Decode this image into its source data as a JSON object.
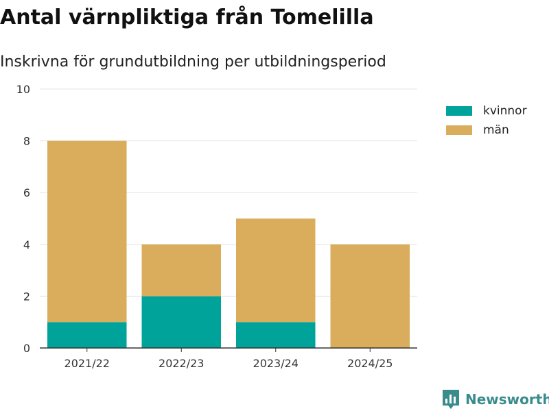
{
  "title": "Antal värnpliktiga från Tomelilla",
  "subtitle": "Inskrivna för grundutbildning per utbildningsperiod",
  "brand": "Newsworthy",
  "colors": {
    "kvinnor": "#00a39a",
    "man": "#daad5c",
    "grid": "#e3e3e3",
    "axis": "#333333"
  },
  "chart_data": {
    "type": "bar",
    "stacked": true,
    "categories": [
      "2021/22",
      "2022/23",
      "2023/24",
      "2024/25"
    ],
    "series": [
      {
        "name": "kvinnor",
        "values": [
          1,
          2,
          1,
          0
        ]
      },
      {
        "name": "män",
        "values": [
          7,
          2,
          4,
          4
        ]
      }
    ],
    "ylim": [
      0,
      10
    ],
    "yticks": [
      0,
      2,
      4,
      6,
      8,
      10
    ],
    "grid": true,
    "legend_position": "top-right"
  }
}
